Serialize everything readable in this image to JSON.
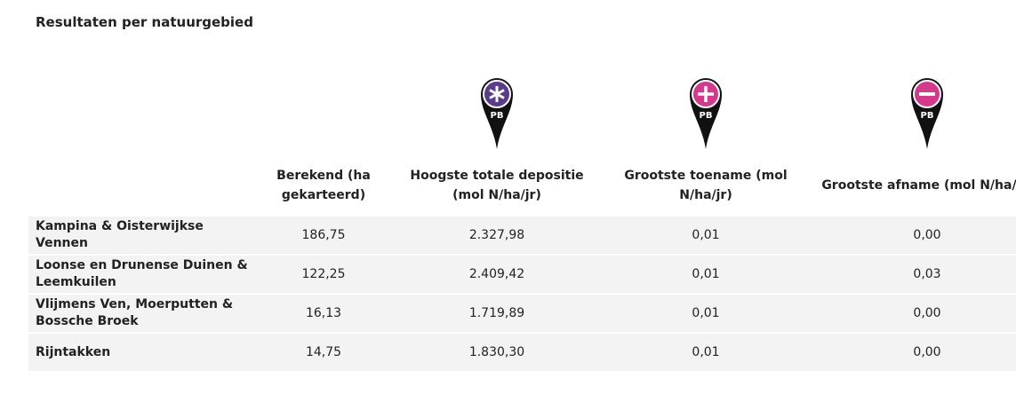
{
  "title": "Resultaten per natuurgebied",
  "table": {
    "icons": [
      {
        "badge": "PB"
      },
      {
        "badge": "PB"
      },
      {
        "badge": "PB"
      }
    ],
    "header": [
      "Berekend (ha gekarteerd)",
      "Hoogste totale depositie (mol N/ha/jr)",
      "Grootste toename (mol N/ha/jr)",
      "Grootste afname (mol N/ha/jr)"
    ],
    "rows": [
      [
        "Kampina & Oisterwijkse Vennen",
        "186,75",
        "2.327,98",
        "0,01",
        "0,00"
      ],
      [
        "Loonse en Drunense Duinen & Leemkuilen",
        "122,25",
        "2.409,42",
        "0,01",
        "0,03"
      ],
      [
        "Vlijmens Ven, Moerputten & Bossche Broek",
        "16,13",
        "1.719,89",
        "0,01",
        "0,00"
      ],
      [
        "Rijntakken",
        "14,75",
        "1.830,30",
        "0,01",
        "0,00"
      ]
    ]
  }
}
